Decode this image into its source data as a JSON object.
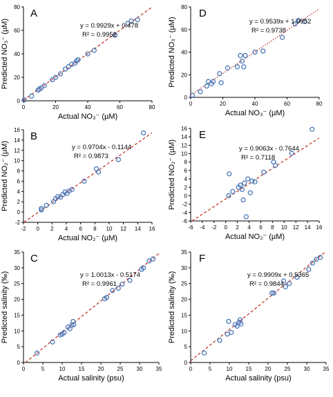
{
  "chart_data": [
    {
      "type": "scatter",
      "letter": "A",
      "equation": "y = 0.9929x + 0.478",
      "r2": "R² = 0.9952",
      "xlabel": "Actual NO₃⁻ (µM)",
      "ylabel": "Predicted NO₃⁻ (µM)",
      "xlim": [
        0,
        80
      ],
      "ylim": [
        0,
        80
      ],
      "xticks": [
        "0",
        "20",
        "40",
        "60",
        "80"
      ],
      "yticks": [
        "0",
        "20",
        "40",
        "60",
        "80"
      ],
      "fit": {
        "slope": 0.9929,
        "intercept": 0.478,
        "style": "dashed"
      },
      "x": [
        0.5,
        5,
        9,
        10,
        11,
        13,
        18,
        20,
        23,
        26,
        28,
        30,
        32,
        33,
        34,
        40,
        44,
        57,
        65,
        67,
        71
      ],
      "y": [
        0.8,
        4,
        9,
        10,
        11,
        13,
        18,
        20,
        23,
        27,
        29,
        31,
        32,
        34,
        35,
        40,
        43,
        56,
        66,
        68,
        69
      ]
    },
    {
      "type": "scatter",
      "letter": "D",
      "equation": "y = 0.9539x + 1.9952",
      "r2": "R² = 0.9738",
      "xlabel": "Actual NO₃⁻ (µM)",
      "ylabel": "Predicted NO₃⁻ (µM)",
      "xlim": [
        0,
        80
      ],
      "ylim": [
        0,
        80
      ],
      "xticks": [
        "0",
        "20",
        "40",
        "60",
        "80"
      ],
      "yticks": [
        "0",
        "20",
        "40",
        "60",
        "80"
      ],
      "fit": {
        "slope": 0.9539,
        "intercept": 1.9952,
        "style": "dotted"
      },
      "x": [
        1,
        6,
        10,
        11,
        13,
        14,
        18,
        19,
        23,
        29,
        31,
        32,
        33,
        34,
        40,
        45,
        57,
        65,
        67,
        71
      ],
      "y": [
        2,
        5,
        10,
        14,
        12,
        14,
        21,
        13,
        26,
        27,
        37,
        32,
        27,
        37,
        40,
        41,
        53,
        65,
        68,
        67
      ]
    },
    {
      "type": "scatter",
      "letter": "B",
      "equation": "y = 0.9704x - 0.1144",
      "r2": "R² = 0.9873",
      "xlabel": "Actual NO₂⁻ (µM)",
      "ylabel": "Predicted NO₂⁻ (µM)",
      "xlim": [
        -2,
        16
      ],
      "ylim": [
        -2,
        16
      ],
      "xticks": [
        "-2",
        "0",
        "2",
        "4",
        "6",
        "8",
        "10",
        "12",
        "14",
        "16"
      ],
      "yticks": [
        "-2",
        "0",
        "2",
        "4",
        "6",
        "8",
        "10",
        "12",
        "14",
        "16"
      ],
      "fit": {
        "slope": 0.9704,
        "intercept": -0.1144,
        "style": "dashed"
      },
      "x": [
        0.5,
        0.5,
        1.2,
        2.2,
        2.5,
        2.8,
        3.2,
        3.5,
        3.8,
        4.1,
        4.4,
        4.8,
        6.5,
        8.2,
        8.5,
        11.3,
        14.8
      ],
      "y": [
        0.4,
        0.7,
        1.3,
        2.0,
        2.6,
        3.0,
        2.9,
        3.4,
        3.9,
        3.6,
        4.1,
        4.4,
        6.0,
        8.4,
        7.8,
        10.2,
        15.4
      ]
    },
    {
      "type": "scatter",
      "letter": "E",
      "equation": "y = 0.9063x - 0.7644",
      "r2": "R² = 0.7118",
      "xlabel": "Actual NO₂⁻ (µM)",
      "ylabel": "Predicted NO₂⁻ (µM)",
      "xlim": [
        -6,
        16
      ],
      "ylim": [
        -6,
        16
      ],
      "xticks": [
        "-6",
        "-4",
        "-2",
        "0",
        "2",
        "4",
        "6",
        "8",
        "10",
        "12",
        "14",
        "16"
      ],
      "yticks": [
        "-6",
        "-4",
        "-2",
        "0",
        "2",
        "4",
        "6",
        "8",
        "10",
        "12",
        "14",
        "16"
      ],
      "fit": {
        "slope": 0.9063,
        "intercept": -0.7644,
        "style": "dashed"
      },
      "x": [
        0.5,
        0.6,
        1.2,
        2.2,
        2.5,
        2.8,
        3.0,
        3.2,
        3.5,
        3.8,
        4.2,
        4.5,
        5.0,
        6.5,
        8.2,
        8.5,
        11.3,
        14.8
      ],
      "y": [
        0.0,
        5.2,
        1.0,
        2.0,
        2.5,
        1.5,
        -1.0,
        3.0,
        -5.0,
        4.0,
        0.7,
        3.5,
        3.3,
        5.6,
        8.0,
        7.2,
        10.1,
        15.8
      ]
    },
    {
      "type": "scatter",
      "letter": "C",
      "equation": "y = 1.0013x - 0.5174",
      "r2": "R² = 0.9961",
      "xlabel": "Actual salinity (psu)",
      "ylabel": "Predicted salinity (‰)",
      "xlim": [
        0,
        35
      ],
      "ylim": [
        0,
        35
      ],
      "xticks": [
        "0",
        "5",
        "10",
        "15",
        "20",
        "25",
        "30",
        "35"
      ],
      "yticks": [
        "0",
        "5",
        "10",
        "15",
        "20",
        "25",
        "30",
        "35"
      ],
      "fit": {
        "slope": 1.0013,
        "intercept": -0.5174,
        "style": "dashed"
      },
      "x": [
        3.5,
        7.5,
        9.5,
        10.0,
        10.5,
        11.5,
        12.0,
        12.5,
        12.8,
        13.0,
        21.0,
        21.5,
        23.0,
        24.5,
        25.5,
        27.5,
        30.5,
        31.0,
        32.5,
        33.5
      ],
      "y": [
        3.0,
        6.5,
        8.7,
        9.0,
        9.5,
        11.2,
        10.7,
        11.8,
        13.0,
        12.0,
        20.2,
        20.6,
        22.8,
        23.5,
        24.8,
        26.0,
        29.5,
        30.0,
        32.2,
        32.8
      ]
    },
    {
      "type": "scatter",
      "letter": "F",
      "equation": "y = 0.9909x + 0.5365",
      "r2": "R² = 0.9844",
      "xlabel": "Actual salinity (psu)",
      "ylabel": "Predicted salinity (‰)",
      "xlim": [
        0,
        35
      ],
      "ylim": [
        0,
        35
      ],
      "xticks": [
        "0",
        "5",
        "10",
        "15",
        "20",
        "25",
        "30",
        "35"
      ],
      "yticks": [
        "0",
        "5",
        "10",
        "15",
        "20",
        "25",
        "30",
        "35"
      ],
      "fit": {
        "slope": 0.9909,
        "intercept": 0.5365,
        "style": "dashed"
      },
      "x": [
        3.5,
        7.5,
        9.5,
        9.8,
        10.5,
        11.5,
        12.0,
        12.5,
        12.8,
        13.0,
        21.0,
        21.5,
        24.0,
        24.5,
        25.5,
        27.5,
        30.5,
        31.5,
        32.5,
        33.5
      ],
      "y": [
        3.0,
        7.0,
        9.0,
        13.0,
        9.5,
        12.0,
        11.5,
        12.7,
        13.5,
        12.2,
        22.0,
        22.0,
        25.8,
        24.0,
        25.0,
        27.0,
        29.5,
        31.5,
        32.7,
        33.3
      ]
    }
  ]
}
